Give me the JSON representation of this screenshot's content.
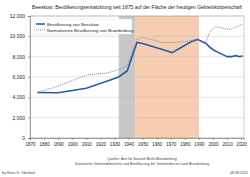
{
  "chart_data": {
    "type": "line",
    "title": "Beeskow: Bevölkerungsentwicklung seit 1875 auf der Fläche der heutigen Gebietskörperschaft",
    "x": [
      1875,
      1890,
      1910,
      1925,
      1933,
      1939,
      1946,
      1950,
      1964,
      1971,
      1981,
      1985,
      1989,
      1992,
      1995,
      1998,
      2001,
      2004,
      2007,
      2010,
      2013,
      2016,
      2019,
      2021
    ],
    "series": [
      {
        "name": "Bevölkerung von Beeskow",
        "color": "#1f5fa8",
        "line_style": "solid",
        "values": [
          4468,
          4450,
          4900,
          5600,
          6000,
          6600,
          9400,
          9300,
          8700,
          8400,
          9200,
          9500,
          9700,
          9500,
          9300,
          8900,
          8600,
          8400,
          8200,
          8000,
          8000,
          8100,
          8000,
          8100
        ]
      },
      {
        "name": "Normalisierte Bevölkerung von Brandenburg",
        "color": "#888888",
        "line_style": "dotted",
        "values": [
          4468,
          5100,
          6200,
          6400,
          6700,
          7100,
          9700,
          9900,
          9400,
          9400,
          9500,
          9600,
          9700,
          9400,
          9500,
          10500,
          10900,
          10900,
          10800,
          10700,
          10700,
          10900,
          11100,
          11200
        ]
      }
    ],
    "periods": [
      {
        "from": 1933,
        "to": 1945,
        "color": "#c8c8c8"
      },
      {
        "from": 1945,
        "to": 1990,
        "color": "#f6cdb0"
      }
    ],
    "xlim": [
      1870,
      2022
    ],
    "xticks": [
      1870,
      1880,
      1890,
      1900,
      1910,
      1920,
      1930,
      1940,
      1950,
      1960,
      1970,
      1980,
      1990,
      2000,
      2010,
      2020
    ],
    "ylim": [
      0,
      12000
    ],
    "yticks": [
      0,
      {
        "value": 2000,
        "label": "2,000"
      },
      {
        "value": 4000,
        "label": "4,000"
      },
      {
        "value": 6000,
        "label": "6,000"
      },
      {
        "value": 8000,
        "label": "8,000"
      },
      {
        "value": 10000,
        "label": "10,000"
      },
      {
        "value": 12000,
        "label": "12,000"
      }
    ],
    "grid": true,
    "legend": "upper left",
    "author": "by Hans G. Oberlack",
    "source": [
      "Quellen: Amt für Statistik Berlin-Brandenburg",
      "Statistische Gemeindeberichte und Bevölkerung der Gemeinden im Land Brandenburg"
    ],
    "date": "08.08.2022"
  }
}
